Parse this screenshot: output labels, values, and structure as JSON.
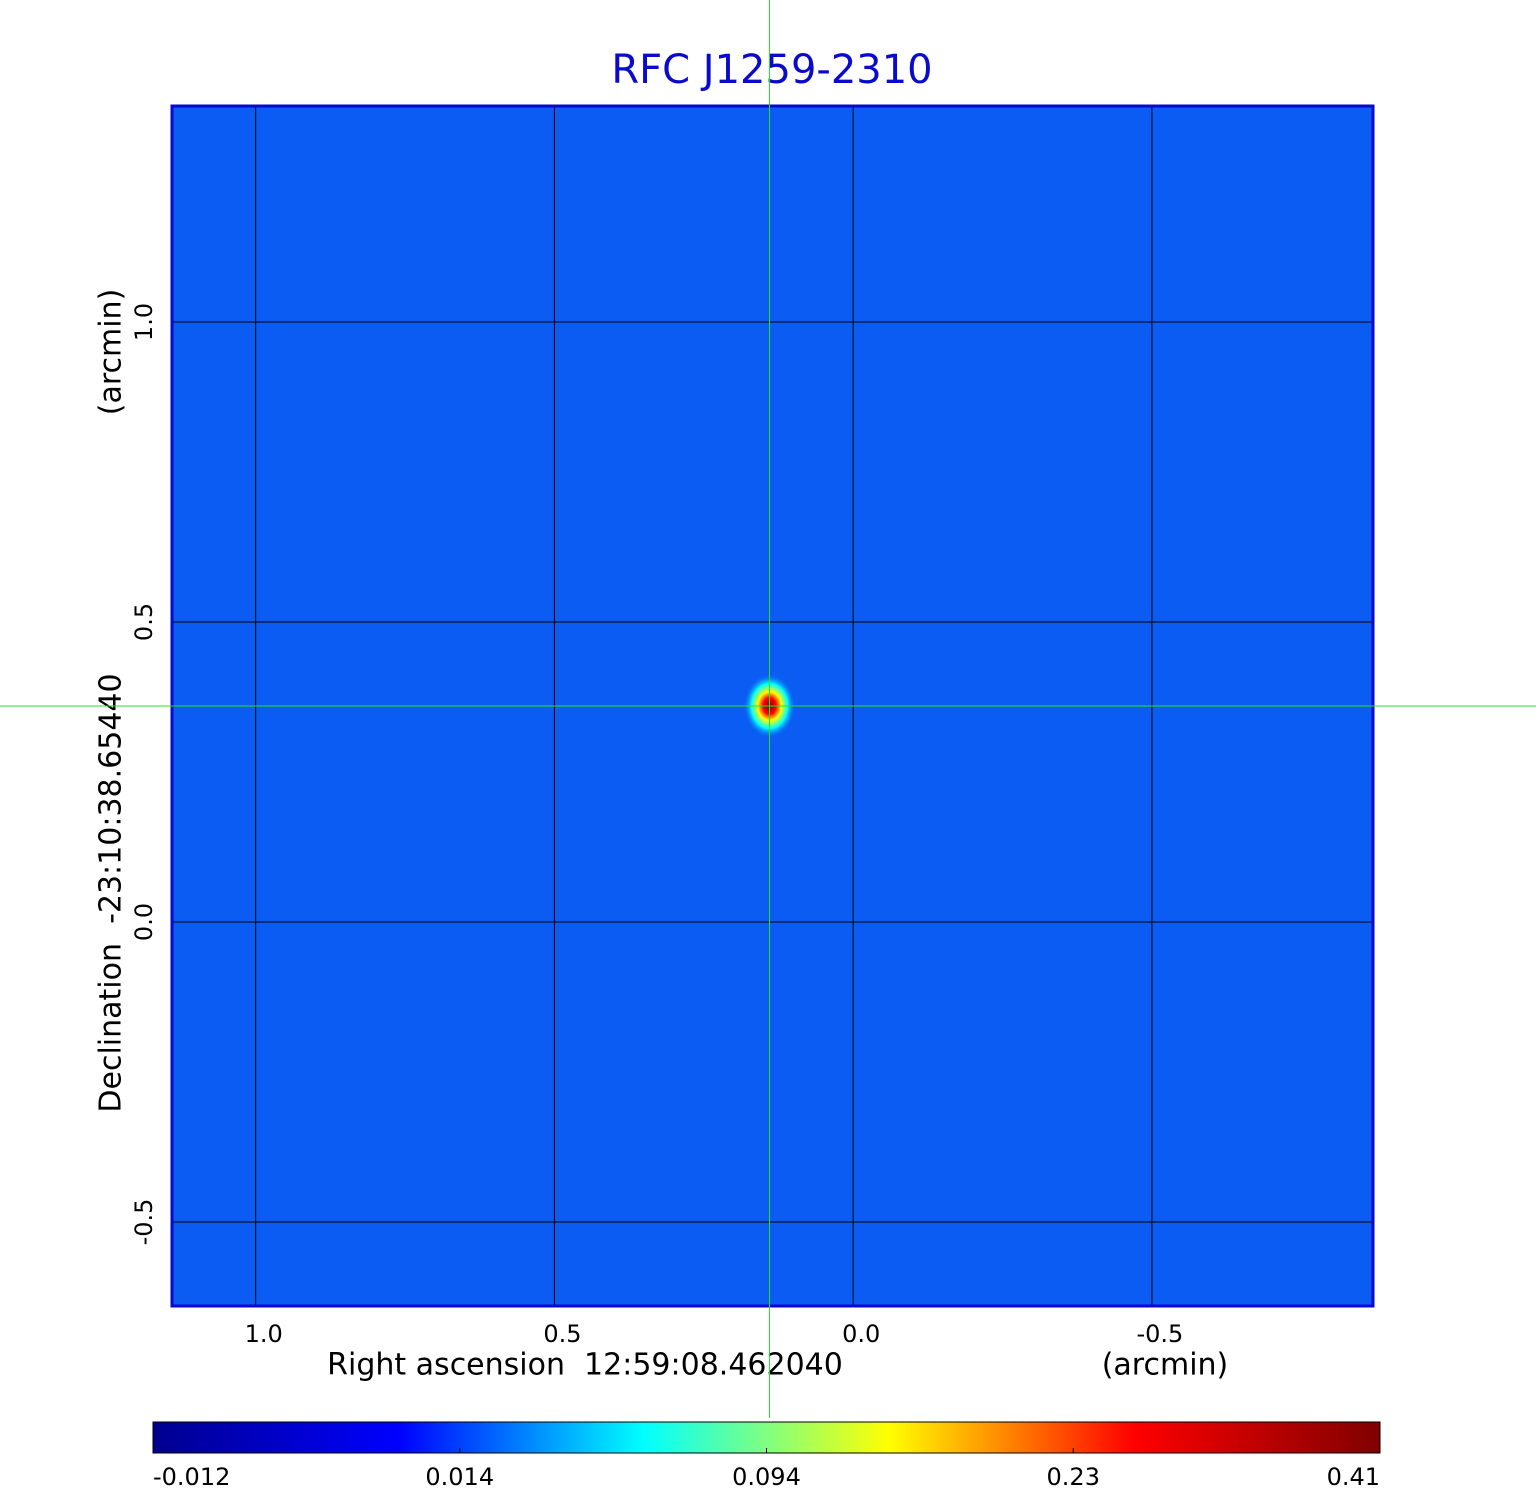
{
  "chart_data": {
    "type": "image",
    "title": "RFC J1259-2310",
    "x_label": "Right ascension  12:59:08.462040",
    "x_unit": "(arcmin)",
    "y_label": "Declination  -23:10:38.65440",
    "y_unit": "(arcmin)",
    "xlim": [
      1.14,
      -0.87
    ],
    "ylim": [
      -0.64,
      1.36
    ],
    "xticks": [
      {
        "value": 1,
        "label": "1.0"
      },
      0.5,
      {
        "value": 0,
        "label": "0.0"
      },
      -0.5
    ],
    "yticks": [
      -0.5,
      {
        "value": 0,
        "label": "0.0"
      },
      0.5,
      {
        "value": 1,
        "label": "1.0"
      }
    ],
    "grid": true,
    "background_color": "#0a5cf2",
    "peak": {
      "x": 0.14,
      "y": 0.36,
      "value": 0.41
    },
    "crosshair": {
      "x": 0.14,
      "y": 0.36,
      "color": "#22e622"
    },
    "colorbar": {
      "ticks": [
        -0.012,
        0.014,
        0.094,
        0.23,
        0.41
      ],
      "colormap": [
        "#00008f",
        "#0000ff",
        "#00ffff",
        "#ffff00",
        "#ff0000",
        "#800000"
      ]
    }
  }
}
